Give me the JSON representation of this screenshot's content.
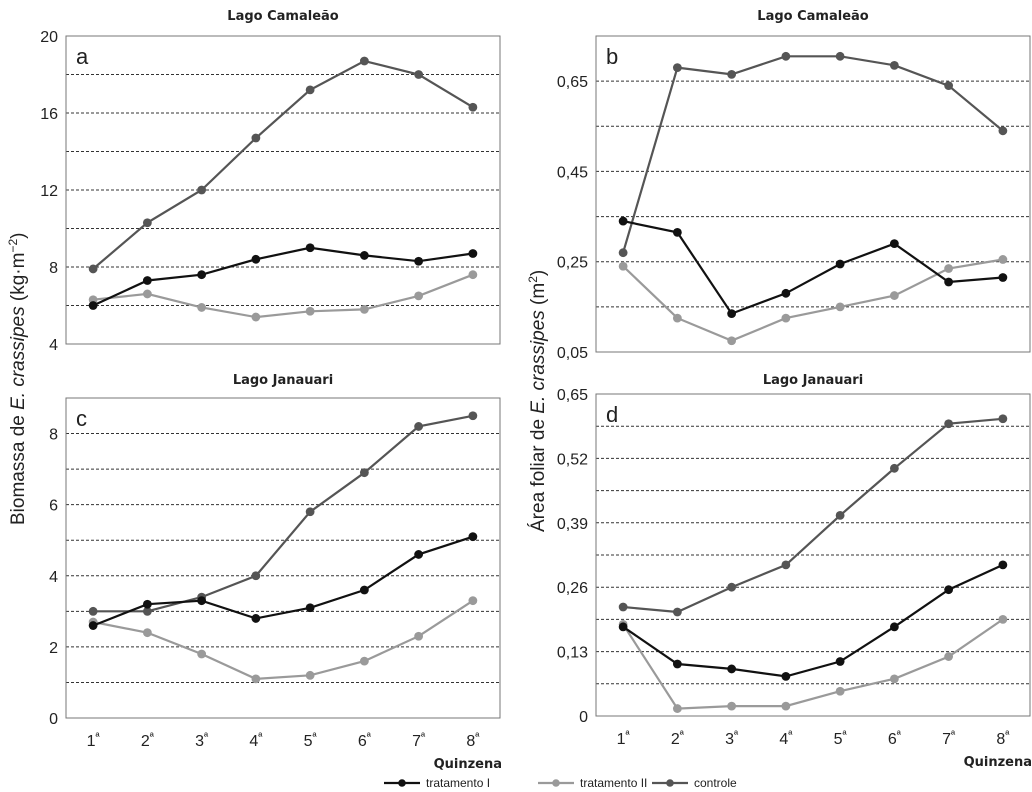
{
  "colors": {
    "tratamento_I": "#111111",
    "tratamento_II": "#9a9a9a",
    "controle": "#555555"
  },
  "ylabel_left": "Biomassa de E. crassipes (kg·m⁻²)",
  "ylabel_right": "Área foliar de E. crassipes (m²)",
  "xlabel": "Quinzena",
  "legend": [
    "tratamento I",
    "tratamento II",
    "controle"
  ],
  "chart_data": [
    {
      "type": "line",
      "panel": "a",
      "title": "Lago Camaleão",
      "categories": [
        "1ª",
        "2ª",
        "3ª",
        "4ª",
        "5ª",
        "6ª",
        "7ª",
        "8ª"
      ],
      "ylim": [
        4,
        20
      ],
      "yticks": [
        "4",
        "8",
        "12",
        "16",
        "20"
      ],
      "grid_step": 2,
      "series": [
        {
          "name": "tratamento I",
          "values": [
            6.0,
            7.3,
            7.6,
            8.4,
            9.0,
            8.6,
            8.3,
            8.7
          ]
        },
        {
          "name": "tratamento II",
          "values": [
            6.3,
            6.6,
            5.9,
            5.4,
            5.7,
            5.8,
            6.5,
            7.6
          ]
        },
        {
          "name": "controle",
          "values": [
            7.9,
            10.3,
            12.0,
            14.7,
            17.2,
            18.7,
            18.0,
            16.3
          ]
        }
      ]
    },
    {
      "type": "line",
      "panel": "b",
      "title": "Lago Camaleão",
      "categories": [
        "1ª",
        "2ª",
        "3ª",
        "4ª",
        "5ª",
        "6ª",
        "7ª",
        "8ª"
      ],
      "ylim": [
        0.05,
        0.75
      ],
      "yticks": [
        "0,05",
        "0,25",
        "0,45",
        "0,65"
      ],
      "grid_step": 0.1,
      "series": [
        {
          "name": "tratamento I",
          "values": [
            0.34,
            0.315,
            0.135,
            0.18,
            0.245,
            0.29,
            0.205,
            0.215
          ]
        },
        {
          "name": "tratamento II",
          "values": [
            0.24,
            0.125,
            0.075,
            0.125,
            0.15,
            0.175,
            0.235,
            0.255
          ]
        },
        {
          "name": "controle",
          "values": [
            0.27,
            0.68,
            0.665,
            0.705,
            0.705,
            0.685,
            0.64,
            0.54
          ]
        }
      ]
    },
    {
      "type": "line",
      "panel": "c",
      "title": "Lago Janauari",
      "categories": [
        "1ª",
        "2ª",
        "3ª",
        "4ª",
        "5ª",
        "6ª",
        "7ª",
        "8ª"
      ],
      "ylim": [
        0,
        9
      ],
      "yticks": [
        "0",
        "2",
        "4",
        "6",
        "8"
      ],
      "grid_step": 1,
      "series": [
        {
          "name": "tratamento I",
          "values": [
            2.6,
            3.2,
            3.3,
            2.8,
            3.1,
            3.6,
            4.6,
            5.1
          ]
        },
        {
          "name": "tratamento II",
          "values": [
            2.7,
            2.4,
            1.8,
            1.1,
            1.2,
            1.6,
            2.3,
            3.3
          ]
        },
        {
          "name": "controle",
          "values": [
            3.0,
            3.0,
            3.4,
            4.0,
            5.8,
            6.9,
            8.2,
            8.5
          ]
        }
      ]
    },
    {
      "type": "line",
      "panel": "d",
      "title": "Lago Janauari",
      "categories": [
        "1ª",
        "2ª",
        "3ª",
        "4ª",
        "5ª",
        "6ª",
        "7ª",
        "8ª"
      ],
      "ylim": [
        0,
        0.65
      ],
      "yticks": [
        "0",
        "0,13",
        "0,26",
        "0,39",
        "0,52",
        "0,65"
      ],
      "grid_step": 0.065,
      "series": [
        {
          "name": "tratamento I",
          "values": [
            0.18,
            0.105,
            0.095,
            0.08,
            0.11,
            0.18,
            0.255,
            0.305
          ]
        },
        {
          "name": "tratamento II",
          "values": [
            0.185,
            0.015,
            0.02,
            0.02,
            0.05,
            0.075,
            0.12,
            0.195
          ]
        },
        {
          "name": "controle",
          "values": [
            0.22,
            0.21,
            0.26,
            0.305,
            0.405,
            0.5,
            0.59,
            0.6
          ]
        }
      ]
    }
  ]
}
